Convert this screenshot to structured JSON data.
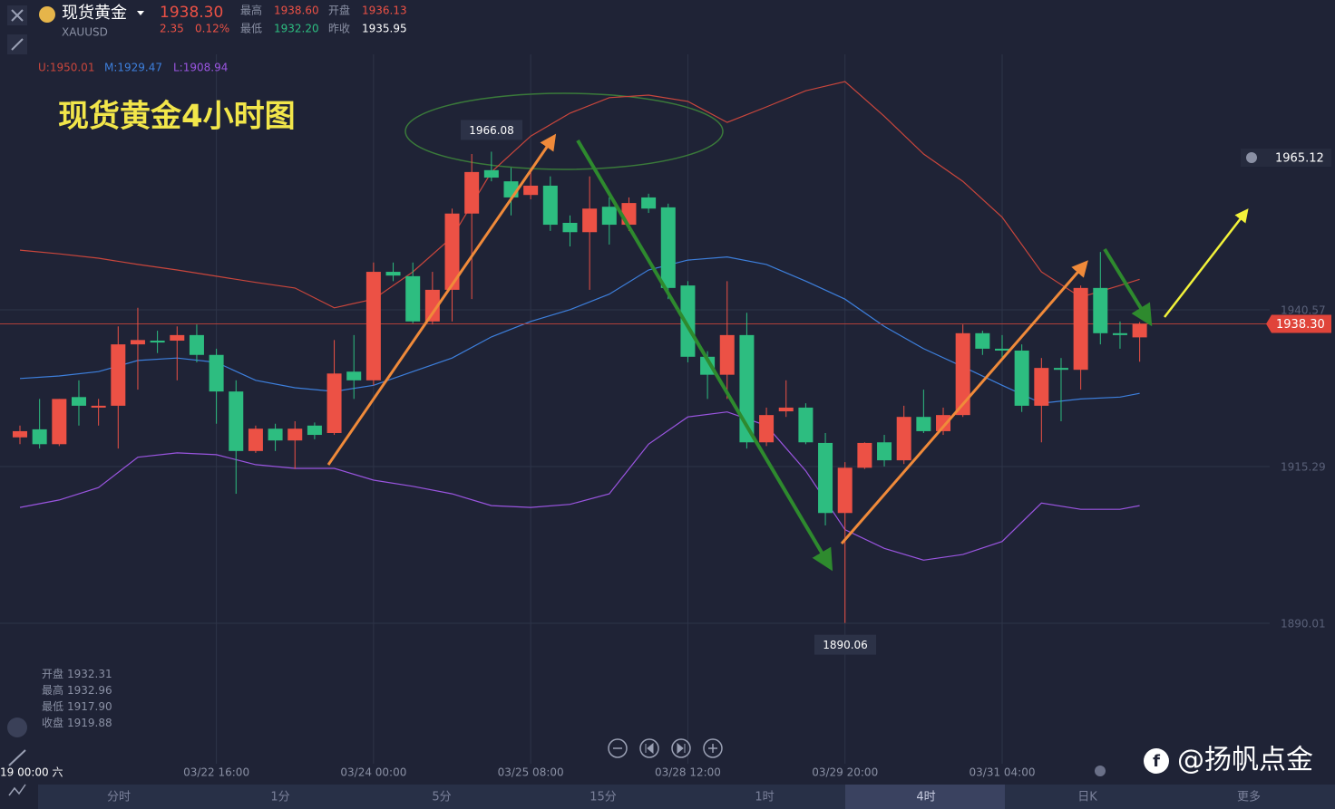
{
  "header": {
    "name": "现货黄金",
    "symbol": "XAUUSD",
    "price": "1938.30",
    "change": "2.35",
    "change_pct": "0.12%",
    "high_label": "最高",
    "high": "1938.60",
    "open_label": "开盘",
    "open": "1936.13",
    "low_label": "最低",
    "low": "1932.20",
    "prev_close_label": "昨收",
    "prev_close": "1935.95"
  },
  "chart_data": {
    "type": "candlestick",
    "title": "现货黄金4小时图",
    "categories": [
      "19 00:00 六",
      null,
      null,
      null,
      null,
      null,
      null,
      null,
      null,
      null,
      "03/22 16:00",
      null,
      null,
      null,
      null,
      null,
      null,
      null,
      "03/24 00:00",
      null,
      null,
      null,
      null,
      null,
      null,
      null,
      "03/25 08:00",
      null,
      null,
      null,
      null,
      null,
      null,
      null,
      "03/28 12:00",
      null,
      null,
      null,
      null,
      null,
      null,
      null,
      "03/29 20:00",
      null,
      null,
      null,
      null,
      null,
      null,
      null,
      "03/31 04:00",
      null,
      null,
      null,
      null,
      null,
      null,
      null
    ],
    "open": [
      1920.0,
      1921.3,
      1918.9,
      1926.5,
      1924.8,
      1925.1,
      1935.0,
      1935.6,
      1935.6,
      1936.5,
      1933.3,
      1927.4,
      1917.8,
      1921.4,
      1919.5,
      1921.9,
      1920.7,
      1930.6,
      1929.2,
      1946.7,
      1946.0,
      1938.7,
      1943.8,
      1956.1,
      1963.1,
      1961.3,
      1959.1,
      1960.6,
      1954.6,
      1953.1,
      1957.2,
      1954.3,
      1958.7,
      1957.1,
      1944.5,
      1933.0,
      1930.1,
      1936.5,
      1919.2,
      1924.2,
      1924.8,
      1919.1,
      1907.8,
      1915.1,
      1919.2,
      1916.3,
      1923.3,
      1921.0,
      1923.6,
      1936.8,
      1934.3,
      1934.0,
      1925.1,
      1931.2,
      1930.9,
      1944.1,
      1936.8,
      1936.13
    ],
    "high": [
      1921.9,
      1926.2,
      1926.2,
      1929.2,
      1926.2,
      1937.9,
      1940.9,
      1937.2,
      1937.9,
      1938.2,
      1934.3,
      1929.2,
      1921.9,
      1922.2,
      1922.6,
      1922.4,
      1935.7,
      1936.5,
      1948.2,
      1948.2,
      1948.2,
      1946.7,
      1956.9,
      1965.7,
      1966.08,
      1963.5,
      1962.8,
      1962.1,
      1955.8,
      1962.1,
      1958.7,
      1958.7,
      1959.3,
      1957.7,
      1945.2,
      1933.9,
      1945.2,
      1940.1,
      1924.8,
      1929.2,
      1925.5,
      1920.7,
      1916.0,
      1919.2,
      1920.4,
      1925.1,
      1927.7,
      1924.8,
      1938.2,
      1937.2,
      1936.5,
      1935.0,
      1932.8,
      1932.8,
      1944.5,
      1949.9,
      1938.7,
      1938.6
    ],
    "low": [
      1918.9,
      1918.2,
      1918.6,
      1921.9,
      1921.9,
      1918.2,
      1927.7,
      1933.6,
      1929.2,
      1932.1,
      1922.2,
      1910.9,
      1917.5,
      1917.8,
      1914.9,
      1919.7,
      1920.4,
      1926.2,
      1928.4,
      1945.2,
      1938.4,
      1938.2,
      1938.7,
      1942.3,
      1961.3,
      1955.8,
      1958.4,
      1953.3,
      1950.8,
      1943.8,
      1951.1,
      1953.3,
      1956.2,
      1942.3,
      1932.1,
      1926.2,
      1926.2,
      1918.2,
      1918.6,
      1923.3,
      1918.9,
      1905.8,
      1890.06,
      1914.9,
      1915.3,
      1915.7,
      1920.7,
      1920.4,
      1923.3,
      1933.3,
      1932.8,
      1924.1,
      1919.2,
      1922.6,
      1927.7,
      1935.0,
      1934.3,
      1932.2
    ],
    "close": [
      1921.0,
      1918.9,
      1926.2,
      1925.1,
      1925.1,
      1935.0,
      1935.7,
      1935.3,
      1936.5,
      1933.3,
      1927.4,
      1917.8,
      1921.4,
      1919.5,
      1921.4,
      1920.4,
      1930.3,
      1929.2,
      1946.7,
      1946.1,
      1938.7,
      1943.8,
      1956.1,
      1962.8,
      1961.9,
      1958.7,
      1960.6,
      1954.3,
      1953.1,
      1956.9,
      1954.3,
      1957.8,
      1956.9,
      1944.1,
      1933.0,
      1930.1,
      1936.5,
      1919.2,
      1923.6,
      1924.8,
      1919.2,
      1907.8,
      1915.1,
      1919.1,
      1916.3,
      1923.3,
      1921.0,
      1923.6,
      1936.8,
      1934.3,
      1934.0,
      1925.1,
      1931.2,
      1930.9,
      1944.1,
      1936.8,
      1936.5,
      1938.3
    ],
    "up_color": "#ec5145",
    "down_color": "#2dbd80",
    "overlay_x": [
      0,
      2,
      4,
      6,
      8,
      10,
      12,
      14,
      16,
      18,
      20,
      22,
      24,
      26,
      28,
      30,
      32,
      34,
      36,
      38,
      40,
      42,
      44,
      46,
      48,
      50,
      52,
      54,
      56,
      57
    ],
    "overlays": [
      {
        "name": "U:1950.01",
        "color": "#c9463c",
        "values": [
          1950.2,
          1949.6,
          1948.9,
          1947.9,
          1947.0,
          1946.0,
          1945.0,
          1944.1,
          1940.9,
          1942.3,
          1946.7,
          1952.3,
          1962.8,
          1968.6,
          1972.3,
          1974.8,
          1975.2,
          1974.2,
          1970.8,
          1973.3,
          1975.9,
          1977.4,
          1971.8,
          1965.7,
          1961.3,
          1955.5,
          1946.7,
          1942.6,
          1944.5,
          1945.5
        ]
      },
      {
        "name": "M:1929.47",
        "color": "#3d7fdc",
        "values": [
          1929.5,
          1929.9,
          1930.6,
          1932.4,
          1932.8,
          1932.1,
          1929.2,
          1928.0,
          1927.4,
          1928.4,
          1930.6,
          1932.8,
          1936.2,
          1938.7,
          1940.6,
          1943.1,
          1947.0,
          1948.6,
          1949.1,
          1947.9,
          1945.2,
          1942.3,
          1937.9,
          1934.3,
          1931.4,
          1928.4,
          1925.5,
          1926.2,
          1926.5,
          1927.1
        ]
      },
      {
        "name": "L:1908.94",
        "color": "#9a55e0",
        "values": [
          1908.7,
          1909.9,
          1911.9,
          1916.8,
          1917.5,
          1917.2,
          1915.6,
          1915.0,
          1915.0,
          1913.1,
          1912.1,
          1910.9,
          1909.0,
          1908.7,
          1909.2,
          1910.9,
          1918.9,
          1923.3,
          1924.1,
          1921.9,
          1914.6,
          1905.1,
          1902.1,
          1900.2,
          1901.1,
          1903.2,
          1909.4,
          1908.4,
          1908.4,
          1909.0
        ]
      }
    ],
    "max_label": 1966.08,
    "min_label": 1890.06,
    "alert_price": 1965.12,
    "last_price": {
      "value": 1938.3,
      "label": "1938.30"
    },
    "ylim": [
      1867.8,
      1981.78
    ],
    "yticks": [
      1940.57,
      1915.29,
      1890.01
    ],
    "grid": true
  },
  "info_box": [
    {
      "label": "开盘",
      "value": "1932.31"
    },
    {
      "label": "最高",
      "value": "1932.96"
    },
    {
      "label": "最低",
      "value": "1917.90"
    },
    {
      "label": "收盘",
      "value": "1919.88"
    }
  ],
  "tabs": [
    "分时",
    "1分",
    "5分",
    "15分",
    "1时",
    "4时",
    "日K",
    "更多"
  ],
  "watermark": "@扬帆点金"
}
